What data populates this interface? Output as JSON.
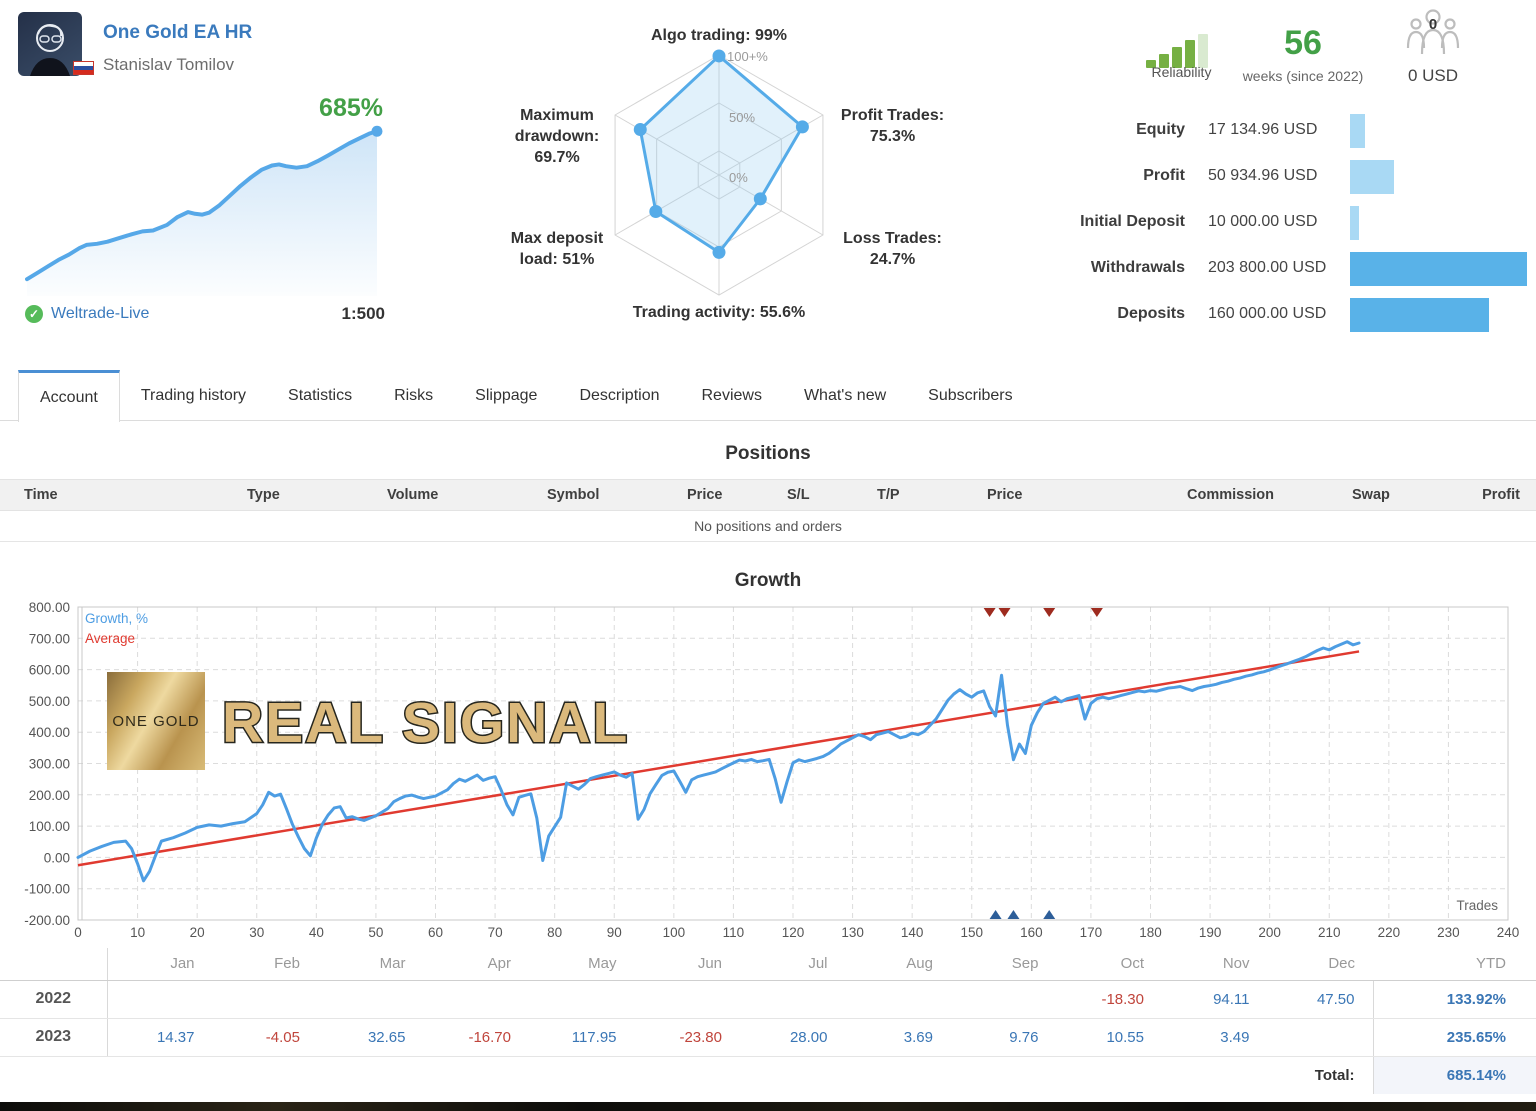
{
  "header": {
    "signal": {
      "name": "One Gold EA HR",
      "author": "Stanislav Tomilov"
    },
    "mini_chart": {
      "growth_label": "685%"
    },
    "broker": {
      "name": "Weltrade-Live",
      "leverage": "1:500"
    },
    "reliability": {
      "label": "Reliability"
    },
    "age": {
      "value": "56",
      "label": "weeks (since 2022)"
    },
    "subscribers": {
      "count": "0",
      "funds": "0 USD"
    },
    "stats": [
      {
        "label": "Equity",
        "value": "17 134.96 USD",
        "amount": 17134.96,
        "tone": "light"
      },
      {
        "label": "Profit",
        "value": "50 934.96 USD",
        "amount": 50934.96,
        "tone": "light"
      },
      {
        "label": "Initial Deposit",
        "value": "10 000.00 USD",
        "amount": 10000.0,
        "tone": "light"
      },
      {
        "label": "Withdrawals",
        "value": "203 800.00 USD",
        "amount": 203800.0,
        "tone": "dark"
      },
      {
        "label": "Deposits",
        "value": "160 000.00 USD",
        "amount": 160000.0,
        "tone": "dark"
      }
    ]
  },
  "radar": {
    "rings": [
      "100+%",
      "50%",
      "0%"
    ],
    "axes": [
      {
        "label_lines": [
          "Algo trading: 99%"
        ],
        "value": 99
      },
      {
        "label_lines": [
          "Profit Trades:",
          "75.3%"
        ],
        "value": 75.3
      },
      {
        "label_lines": [
          "Loss Trades:",
          "24.7%"
        ],
        "value": 24.7
      },
      {
        "label_lines": [
          "Trading activity: 55.6%"
        ],
        "value": 55.6
      },
      {
        "label_lines": [
          "Max deposit",
          "load: 51%"
        ],
        "value": 51
      },
      {
        "label_lines": [
          "Maximum",
          "drawdown:",
          "69.7%"
        ],
        "value": 69.7
      }
    ]
  },
  "tabs": {
    "active": 0,
    "items": [
      "Account",
      "Trading history",
      "Statistics",
      "Risks",
      "Slippage",
      "Description",
      "Reviews",
      "What's new",
      "Subscribers"
    ]
  },
  "positions": {
    "title": "Positions",
    "columns": [
      "Time",
      "Type",
      "Volume",
      "Symbol",
      "Price",
      "S/L",
      "T/P",
      "Price",
      "Commission",
      "Swap",
      "Profit"
    ],
    "empty": "No positions and orders"
  },
  "chart_data": {
    "type": "line",
    "title": "Growth",
    "xlabel": "Trades",
    "xlim": [
      0,
      240
    ],
    "ylim": [
      -200,
      800
    ],
    "xtick_step": 10,
    "ytick_step": 100,
    "grid": true,
    "legend_position": "top-left",
    "legend": [
      {
        "name": "Growth, %",
        "color": "#4d9de3"
      },
      {
        "name": "Average",
        "color": "#e03a30"
      }
    ],
    "watermark": {
      "box_text": "ONE GOLD",
      "text": "REAL SIGNAL"
    },
    "series": [
      {
        "name": "Growth, %",
        "color": "#4d9de3",
        "points": [
          [
            0,
            0
          ],
          [
            2,
            20
          ],
          [
            4,
            35
          ],
          [
            6,
            48
          ],
          [
            8,
            52
          ],
          [
            9,
            28
          ],
          [
            10,
            -20
          ],
          [
            11,
            -75
          ],
          [
            12,
            -45
          ],
          [
            13,
            5
          ],
          [
            14,
            52
          ],
          [
            16,
            63
          ],
          [
            18,
            78
          ],
          [
            20,
            96
          ],
          [
            22,
            104
          ],
          [
            24,
            100
          ],
          [
            26,
            108
          ],
          [
            28,
            114
          ],
          [
            30,
            140
          ],
          [
            31,
            168
          ],
          [
            32,
            208
          ],
          [
            33,
            196
          ],
          [
            34,
            202
          ],
          [
            35,
            155
          ],
          [
            36,
            105
          ],
          [
            37,
            65
          ],
          [
            38,
            28
          ],
          [
            39,
            5
          ],
          [
            40,
            62
          ],
          [
            41,
            106
          ],
          [
            42,
            136
          ],
          [
            43,
            158
          ],
          [
            44,
            162
          ],
          [
            45,
            126
          ],
          [
            46,
            130
          ],
          [
            47,
            123
          ],
          [
            48,
            118
          ],
          [
            50,
            133
          ],
          [
            52,
            156
          ],
          [
            53,
            178
          ],
          [
            54,
            188
          ],
          [
            55,
            196
          ],
          [
            56,
            199
          ],
          [
            57,
            193
          ],
          [
            58,
            188
          ],
          [
            60,
            196
          ],
          [
            61,
            206
          ],
          [
            62,
            216
          ],
          [
            63,
            236
          ],
          [
            64,
            250
          ],
          [
            65,
            243
          ],
          [
            66,
            253
          ],
          [
            67,
            263
          ],
          [
            68,
            246
          ],
          [
            69,
            253
          ],
          [
            70,
            258
          ],
          [
            71,
            216
          ],
          [
            72,
            168
          ],
          [
            73,
            136
          ],
          [
            74,
            192
          ],
          [
            75,
            198
          ],
          [
            76,
            203
          ],
          [
            77,
            126
          ],
          [
            78,
            -10
          ],
          [
            79,
            68
          ],
          [
            80,
            98
          ],
          [
            81,
            128
          ],
          [
            82,
            238
          ],
          [
            83,
            228
          ],
          [
            84,
            218
          ],
          [
            85,
            233
          ],
          [
            86,
            252
          ],
          [
            87,
            258
          ],
          [
            88,
            263
          ],
          [
            89,
            268
          ],
          [
            90,
            273
          ],
          [
            91,
            263
          ],
          [
            92,
            256
          ],
          [
            93,
            268
          ],
          [
            94,
            122
          ],
          [
            95,
            153
          ],
          [
            96,
            203
          ],
          [
            97,
            233
          ],
          [
            98,
            262
          ],
          [
            99,
            272
          ],
          [
            100,
            276
          ],
          [
            101,
            243
          ],
          [
            102,
            208
          ],
          [
            103,
            248
          ],
          [
            104,
            258
          ],
          [
            105,
            263
          ],
          [
            106,
            268
          ],
          [
            107,
            273
          ],
          [
            108,
            283
          ],
          [
            110,
            302
          ],
          [
            111,
            311
          ],
          [
            112,
            308
          ],
          [
            113,
            313
          ],
          [
            114,
            306
          ],
          [
            115,
            309
          ],
          [
            116,
            313
          ],
          [
            117,
            252
          ],
          [
            118,
            176
          ],
          [
            119,
            242
          ],
          [
            120,
            302
          ],
          [
            121,
            312
          ],
          [
            122,
            306
          ],
          [
            123,
            311
          ],
          [
            124,
            316
          ],
          [
            125,
            322
          ],
          [
            126,
            332
          ],
          [
            127,
            346
          ],
          [
            128,
            362
          ],
          [
            129,
            372
          ],
          [
            130,
            382
          ],
          [
            131,
            392
          ],
          [
            132,
            386
          ],
          [
            133,
            376
          ],
          [
            134,
            392
          ],
          [
            135,
            397
          ],
          [
            136,
            402
          ],
          [
            137,
            392
          ],
          [
            138,
            382
          ],
          [
            139,
            387
          ],
          [
            140,
            397
          ],
          [
            141,
            392
          ],
          [
            142,
            402
          ],
          [
            143,
            422
          ],
          [
            144,
            442
          ],
          [
            145,
            472
          ],
          [
            146,
            502
          ],
          [
            147,
            522
          ],
          [
            148,
            536
          ],
          [
            149,
            522
          ],
          [
            150,
            512
          ],
          [
            151,
            526
          ],
          [
            152,
            532
          ],
          [
            153,
            482
          ],
          [
            154,
            452
          ],
          [
            155,
            582
          ],
          [
            156,
            422
          ],
          [
            157,
            312
          ],
          [
            158,
            362
          ],
          [
            159,
            332
          ],
          [
            160,
            422
          ],
          [
            161,
            462
          ],
          [
            162,
            492
          ],
          [
            163,
            502
          ],
          [
            164,
            512
          ],
          [
            165,
            497
          ],
          [
            166,
            507
          ],
          [
            167,
            512
          ],
          [
            168,
            517
          ],
          [
            169,
            442
          ],
          [
            170,
            492
          ],
          [
            171,
            507
          ],
          [
            172,
            512
          ],
          [
            173,
            507
          ],
          [
            174,
            512
          ],
          [
            175,
            517
          ],
          [
            176,
            522
          ],
          [
            177,
            527
          ],
          [
            178,
            532
          ],
          [
            179,
            529
          ],
          [
            180,
            533
          ],
          [
            181,
            531
          ],
          [
            182,
            536
          ],
          [
            183,
            541
          ],
          [
            184,
            543
          ],
          [
            185,
            546
          ],
          [
            186,
            539
          ],
          [
            187,
            533
          ],
          [
            188,
            541
          ],
          [
            189,
            546
          ],
          [
            190,
            549
          ],
          [
            191,
            553
          ],
          [
            192,
            559
          ],
          [
            193,
            563
          ],
          [
            194,
            569
          ],
          [
            195,
            573
          ],
          [
            196,
            579
          ],
          [
            197,
            583
          ],
          [
            198,
            589
          ],
          [
            199,
            593
          ],
          [
            200,
            599
          ],
          [
            201,
            606
          ],
          [
            202,
            613
          ],
          [
            203,
            619
          ],
          [
            204,
            626
          ],
          [
            205,
            633
          ],
          [
            206,
            641
          ],
          [
            207,
            651
          ],
          [
            208,
            661
          ],
          [
            209,
            669
          ],
          [
            210,
            663
          ],
          [
            211,
            673
          ],
          [
            212,
            681
          ],
          [
            213,
            689
          ],
          [
            214,
            679
          ],
          [
            215,
            685
          ]
        ]
      },
      {
        "name": "Average",
        "color": "#e03a30",
        "points": [
          [
            0,
            -25
          ],
          [
            215,
            658
          ]
        ]
      }
    ],
    "markers": {
      "withdrawals": {
        "color": "#9e2b1f",
        "x": [
          153,
          155.5,
          163,
          171
        ]
      },
      "deposits": {
        "color": "#2d5e99",
        "x": [
          154,
          157,
          163
        ]
      }
    }
  },
  "sparkline": {
    "color": "#56a8e8",
    "points": [
      [
        0,
        -5
      ],
      [
        0.03,
        25
      ],
      [
        0.06,
        55
      ],
      [
        0.09,
        85
      ],
      [
        0.12,
        110
      ],
      [
        0.15,
        140
      ],
      [
        0.17,
        155
      ],
      [
        0.2,
        160
      ],
      [
        0.23,
        170
      ],
      [
        0.26,
        185
      ],
      [
        0.3,
        205
      ],
      [
        0.33,
        218
      ],
      [
        0.36,
        222
      ],
      [
        0.4,
        248
      ],
      [
        0.43,
        285
      ],
      [
        0.46,
        308
      ],
      [
        0.48,
        300
      ],
      [
        0.5,
        296
      ],
      [
        0.52,
        305
      ],
      [
        0.55,
        340
      ],
      [
        0.58,
        385
      ],
      [
        0.61,
        430
      ],
      [
        0.64,
        470
      ],
      [
        0.67,
        505
      ],
      [
        0.7,
        525
      ],
      [
        0.72,
        530
      ],
      [
        0.74,
        522
      ],
      [
        0.77,
        515
      ],
      [
        0.8,
        522
      ],
      [
        0.83,
        545
      ],
      [
        0.86,
        572
      ],
      [
        0.89,
        600
      ],
      [
        0.92,
        628
      ],
      [
        0.95,
        652
      ],
      [
        0.98,
        675
      ],
      [
        1.0,
        685
      ]
    ]
  },
  "monthly": {
    "months": [
      "Jan",
      "Feb",
      "Mar",
      "Apr",
      "May",
      "Jun",
      "Jul",
      "Aug",
      "Sep",
      "Oct",
      "Nov",
      "Dec"
    ],
    "ytd_label": "YTD",
    "rows": [
      {
        "year": "2022",
        "values": [
          "",
          "",
          "",
          "",
          "",
          "",
          "",
          "",
          "",
          "-18.30",
          "94.11",
          "47.50"
        ],
        "ytd": "133.92%"
      },
      {
        "year": "2023",
        "values": [
          "14.37",
          "-4.05",
          "32.65",
          "-16.70",
          "117.95",
          "-23.80",
          "28.00",
          "3.69",
          "9.76",
          "10.55",
          "3.49",
          ""
        ],
        "ytd": "235.65%"
      }
    ],
    "total_label": "Total:",
    "total_value": "685.14%"
  }
}
